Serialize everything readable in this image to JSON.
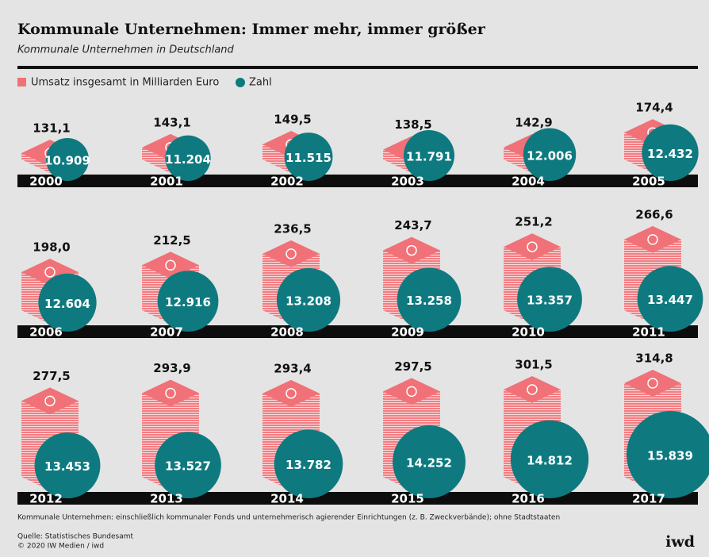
{
  "chart_data": {
    "type": "pictogram",
    "title": "Kommunale Unternehmen: Immer mehr, immer größer",
    "subtitle": "Kommunale Unternehmen in Deutschland",
    "categories": [
      "2000",
      "2001",
      "2002",
      "2003",
      "2004",
      "2005",
      "2006",
      "2007",
      "2008",
      "2009",
      "2010",
      "2011",
      "2012",
      "2013",
      "2014",
      "2015",
      "2016",
      "2017"
    ],
    "series": [
      {
        "name": "Umsatz insgesamt in Milliarden Euro",
        "color": "#f07177",
        "values": [
          131.1,
          143.1,
          149.5,
          138.5,
          142.9,
          174.4,
          198.0,
          212.5,
          236.5,
          243.7,
          251.2,
          266.6,
          277.5,
          293.9,
          293.4,
          297.5,
          301.5,
          314.8
        ],
        "value_labels": [
          "131,1",
          "143,1",
          "149,5",
          "138,5",
          "142,9",
          "174,4",
          "198,0",
          "212,5",
          "236,5",
          "243,7",
          "251,2",
          "266,6",
          "277,5",
          "293,9",
          "293,4",
          "297,5",
          "301,5",
          "314,8"
        ]
      },
      {
        "name": "Zahl",
        "color": "#0e7a80",
        "values": [
          10909,
          11204,
          11515,
          11791,
          12006,
          12432,
          12604,
          12916,
          13208,
          13258,
          13357,
          13447,
          13453,
          13527,
          13782,
          14252,
          14812,
          15839
        ],
        "value_labels": [
          "10.909",
          "11.204",
          "11.515",
          "11.791",
          "12.006",
          "12.432",
          "12.604",
          "12.916",
          "13.208",
          "13.258",
          "13.357",
          "13.447",
          "13.453",
          "13.527",
          "13.782",
          "14.252",
          "14.812",
          "15.839"
        ]
      }
    ],
    "note": "Kommunale Unternehmen: einschließlich kommunaler Fonds und unternehmerisch agierender Einrichtungen (z. B. Zweckverbände); ohne Stadtstaaten",
    "source": "Quelle: Statistisches Bundesamt",
    "copyright": "© 2020 IW Medien / iwd",
    "logo": "iwd"
  }
}
